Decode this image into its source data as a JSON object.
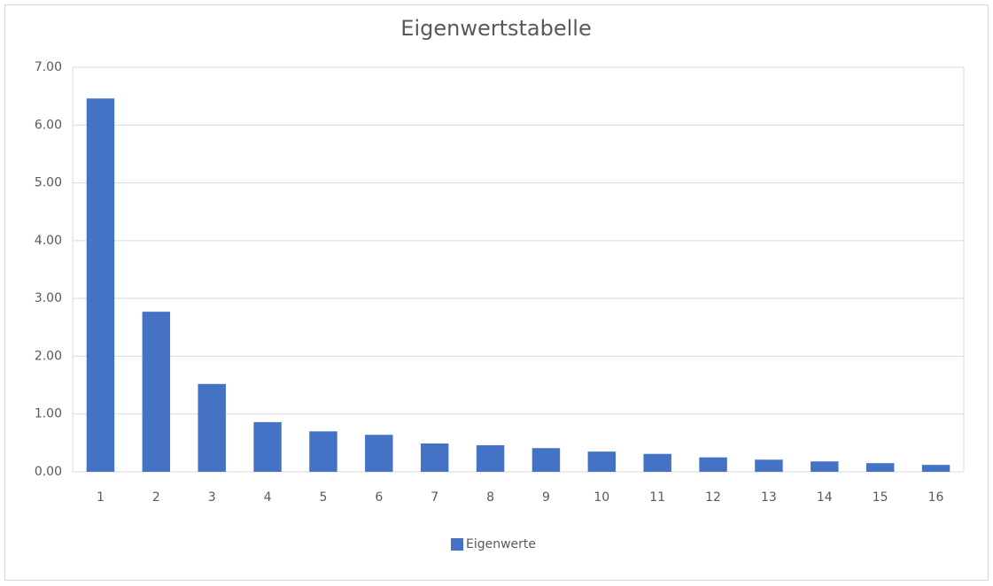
{
  "chart_data": {
    "type": "bar",
    "title": "Eigenwertstabelle",
    "categories": [
      "1",
      "2",
      "3",
      "4",
      "5",
      "6",
      "7",
      "8",
      "9",
      "10",
      "11",
      "12",
      "13",
      "14",
      "15",
      "16"
    ],
    "series": [
      {
        "name": "Eigenwerte",
        "color": "#4472c4",
        "values": [
          6.46,
          2.77,
          1.52,
          0.86,
          0.7,
          0.64,
          0.49,
          0.46,
          0.41,
          0.35,
          0.31,
          0.25,
          0.21,
          0.18,
          0.15,
          0.12
        ]
      }
    ],
    "ylim": [
      0,
      7
    ],
    "yticks": [
      {
        "value": 0,
        "label": "0.00"
      },
      {
        "value": 1,
        "label": "1.00"
      },
      {
        "value": 2,
        "label": "2.00"
      },
      {
        "value": 3,
        "label": "3.00"
      },
      {
        "value": 4,
        "label": "4.00"
      },
      {
        "value": 5,
        "label": "5.00"
      },
      {
        "value": 6,
        "label": "6.00"
      },
      {
        "value": 7,
        "label": "7.00"
      }
    ],
    "grid": true,
    "legend": "bottom"
  }
}
